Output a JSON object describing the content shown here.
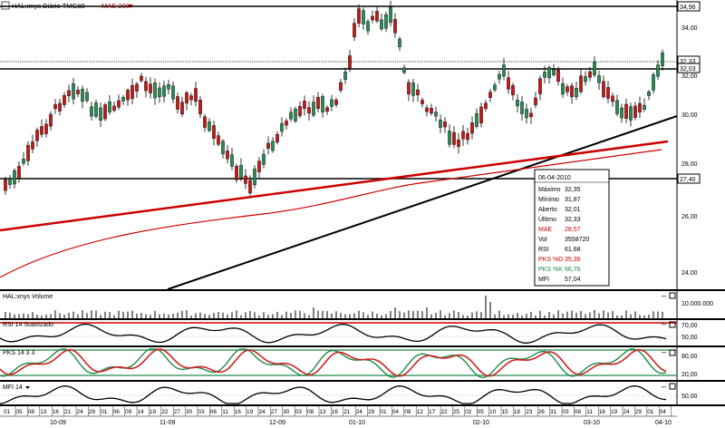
{
  "main_panel": {
    "title": "HAL:xnys Diário TMGä0",
    "indicator": "MAE 200",
    "y_ticks": [
      "34,00",
      "32,00",
      "30,00",
      "28,00",
      "26,00",
      "24,00"
    ],
    "price_tags": [
      "34,96",
      "32,33",
      "32,03",
      "27,40"
    ]
  },
  "info_box": {
    "date": "06-04-2010",
    "rows": [
      {
        "label": "Máximo",
        "value": "32,35"
      },
      {
        "label": "Mínimo",
        "value": "31,87"
      },
      {
        "label": "Aberto",
        "value": "32,01"
      },
      {
        "label": "Último",
        "value": "32,33"
      },
      {
        "label": "MAE",
        "value": "28,57"
      },
      {
        "label": "Vol",
        "value": "3558720"
      },
      {
        "label": "RSI",
        "value": "61,68"
      },
      {
        "label": "PKS %D",
        "value": "35,36"
      },
      {
        "label": "PKS %K",
        "value": "66,76"
      },
      {
        "label": "MFI",
        "value": "57,04"
      }
    ]
  },
  "volume_panel": {
    "title": "HAL:xnys Volume",
    "y_label": "10.000.000"
  },
  "rsi_panel": {
    "title": "RSI 14 Suavizado",
    "levels": [
      "70,00",
      "50,00"
    ]
  },
  "pks_panel": {
    "title": "PKS 14 3 3",
    "levels": [
      "80,00",
      "20,00"
    ]
  },
  "mfi_panel": {
    "title": "MFI 14",
    "levels": [
      "50,00"
    ]
  },
  "x_axis": {
    "days": [
      "01",
      "05",
      "08",
      "13",
      "16",
      "21",
      "24",
      "29",
      "01",
      "06",
      "09",
      "14",
      "19",
      "22",
      "27",
      "30",
      "03",
      "06",
      "11",
      "16",
      "19",
      "24",
      "27",
      "30",
      "03",
      "08",
      "13",
      "16",
      "21",
      "24",
      "29",
      "01",
      "04",
      "09",
      "12",
      "17",
      "22",
      "25",
      "02",
      "05",
      "10",
      "15",
      "18",
      "23",
      "26",
      "31",
      "03",
      "08",
      "11",
      "16",
      "19",
      "24",
      "29",
      "01",
      "04"
    ],
    "months": [
      "10-09",
      "11-09",
      "12-09",
      "01-10",
      "02-10",
      "03-10",
      "04-10"
    ]
  },
  "colors": {
    "up": "#2e8b57",
    "down": "#c21a1a",
    "ma": "#cc0000",
    "pks_k": "#1f8a4a",
    "pks_d": "#cc2222",
    "grid_line": "#ffffff"
  }
}
